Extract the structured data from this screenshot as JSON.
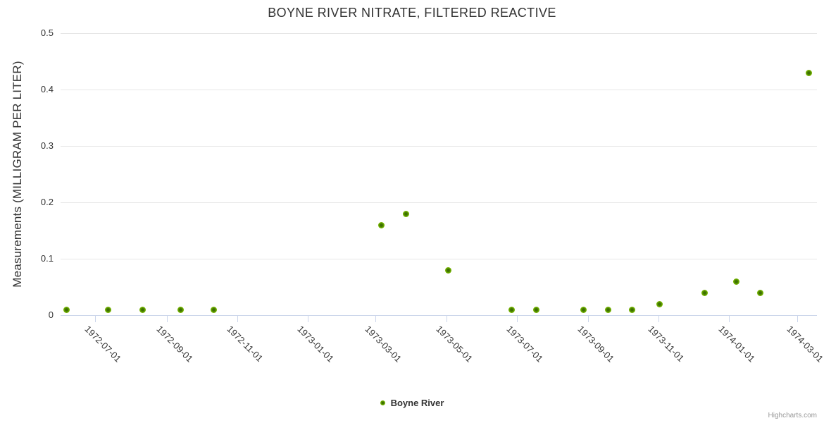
{
  "title": "BOYNE RIVER NITRATE, FILTERED REACTIVE",
  "credits": "Highcharts.com",
  "legend": {
    "items": [
      {
        "label": "Boyne River",
        "marker": "circle-icon"
      }
    ]
  },
  "colors": {
    "background": "#ffffff",
    "title_text": "#333333",
    "axis_label_text": "#333333",
    "grid_line": "#e6e6e6",
    "axis_line": "#ccd6eb",
    "point_outer": "#7CB800",
    "point_inner": "#3E7000",
    "legend_text": "#333333",
    "credits_text": "#999999"
  },
  "chart_data": {
    "type": "scatter",
    "title": "BOYNE RIVER NITRATE, FILTERED REACTIVE",
    "xlabel": "",
    "ylabel": "Measurements (MILLIGRAM PER LITER)",
    "ylim": [
      0,
      0.5
    ],
    "yticks": [
      0,
      0.1,
      0.2,
      0.3,
      0.4,
      0.5
    ],
    "xticks": [
      "1972-07-01",
      "1972-09-01",
      "1972-11-01",
      "1973-01-01",
      "1973-03-01",
      "1973-05-01",
      "1973-07-01",
      "1973-09-01",
      "1973-11-01",
      "1974-01-01",
      "1974-03-01"
    ],
    "x_tick_rotation": 45,
    "grid": "horizontal-only",
    "legend_position": "bottom-center",
    "series": [
      {
        "name": "Boyne River",
        "color": "#7CB800",
        "points": [
          {
            "date": "1972-06-06",
            "value": 0.01
          },
          {
            "date": "1972-07-12",
            "value": 0.01
          },
          {
            "date": "1972-08-11",
            "value": 0.01
          },
          {
            "date": "1972-09-13",
            "value": 0.01
          },
          {
            "date": "1972-10-12",
            "value": 0.01
          },
          {
            "date": "1973-03-06",
            "value": 0.16
          },
          {
            "date": "1973-03-27",
            "value": 0.18
          },
          {
            "date": "1973-05-03",
            "value": 0.08
          },
          {
            "date": "1973-06-27",
            "value": 0.01
          },
          {
            "date": "1973-07-18",
            "value": 0.01
          },
          {
            "date": "1973-08-28",
            "value": 0.01
          },
          {
            "date": "1973-09-18",
            "value": 0.01
          },
          {
            "date": "1973-10-09",
            "value": 0.01
          },
          {
            "date": "1973-11-02",
            "value": 0.02
          },
          {
            "date": "1973-12-11",
            "value": 0.04
          },
          {
            "date": "1974-01-07",
            "value": 0.06
          },
          {
            "date": "1974-01-28",
            "value": 0.04
          },
          {
            "date": "1974-03-11",
            "value": 0.43
          }
        ]
      }
    ]
  }
}
